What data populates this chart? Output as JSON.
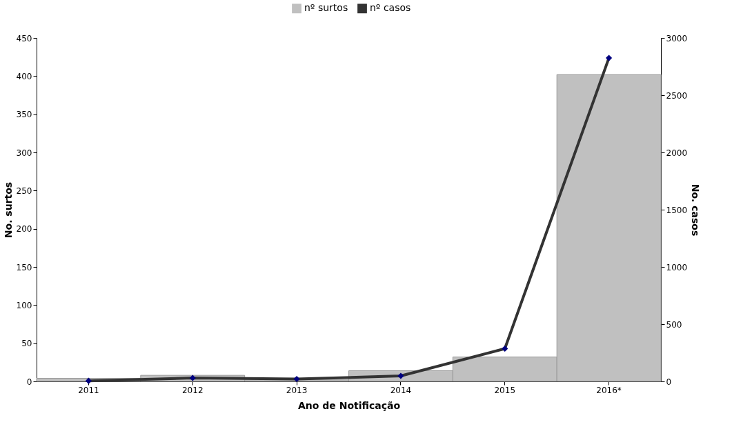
{
  "chart_data": {
    "type": "bar",
    "categories": [
      "2011",
      "2012",
      "2013",
      "2014",
      "2015",
      "2016*"
    ],
    "xlabel": "Ano de Notificação",
    "ylabel": "No. surtos",
    "y2label": "No. casos",
    "series": [
      {
        "name": "nº surtos",
        "color": "#c0c0c0",
        "values": [
          4,
          8,
          2,
          14,
          32,
          402
        ]
      },
      {
        "name": "nº casos",
        "type": "line",
        "axis": "y2",
        "color": "#333333",
        "marker": "diamond",
        "values": [
          5,
          30,
          21,
          48,
          286,
          2825
        ]
      }
    ],
    "ylim": [
      0,
      450
    ],
    "yticks": [
      0,
      50,
      100,
      150,
      200,
      250,
      300,
      350,
      400,
      450
    ],
    "y2lim": [
      0,
      3000
    ],
    "y2ticks": [
      0,
      500,
      1000,
      1500,
      2000,
      2500,
      3000
    ],
    "grid": false,
    "legend": "top"
  }
}
